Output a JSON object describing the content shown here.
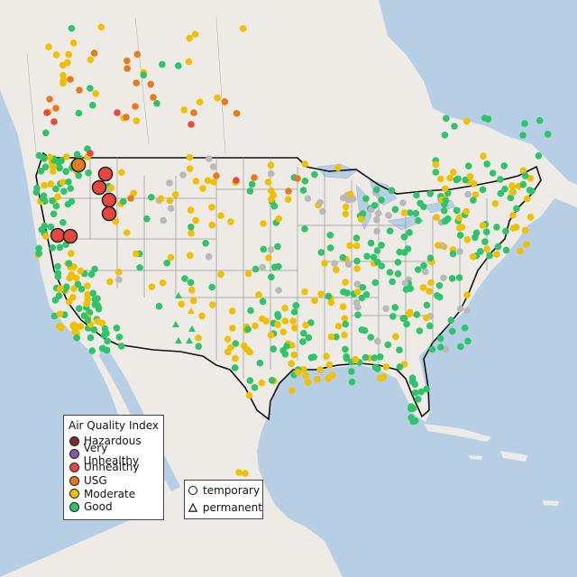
{
  "legend": {
    "title": "Air Quality Index",
    "categories": [
      {
        "label": "Hazardous",
        "color": "#7e2a2a"
      },
      {
        "label": "Very Unhealthy",
        "color": "#8e55a5"
      },
      {
        "label": "Unhealthy",
        "color": "#e8473e"
      },
      {
        "label": "USG",
        "color": "#e87a1d"
      },
      {
        "label": "Moderate",
        "color": "#f0c000"
      },
      {
        "label": "Good",
        "color": "#2fc46a"
      }
    ]
  },
  "type_legend": {
    "temporary": "temporary",
    "permanent": "permanent"
  },
  "colors": {
    "water": "#b7cfe5",
    "land": "#eeeae6",
    "border": "#111111",
    "state_lines": "#9a9a9a",
    "no_data": "#b9b9b9"
  }
}
